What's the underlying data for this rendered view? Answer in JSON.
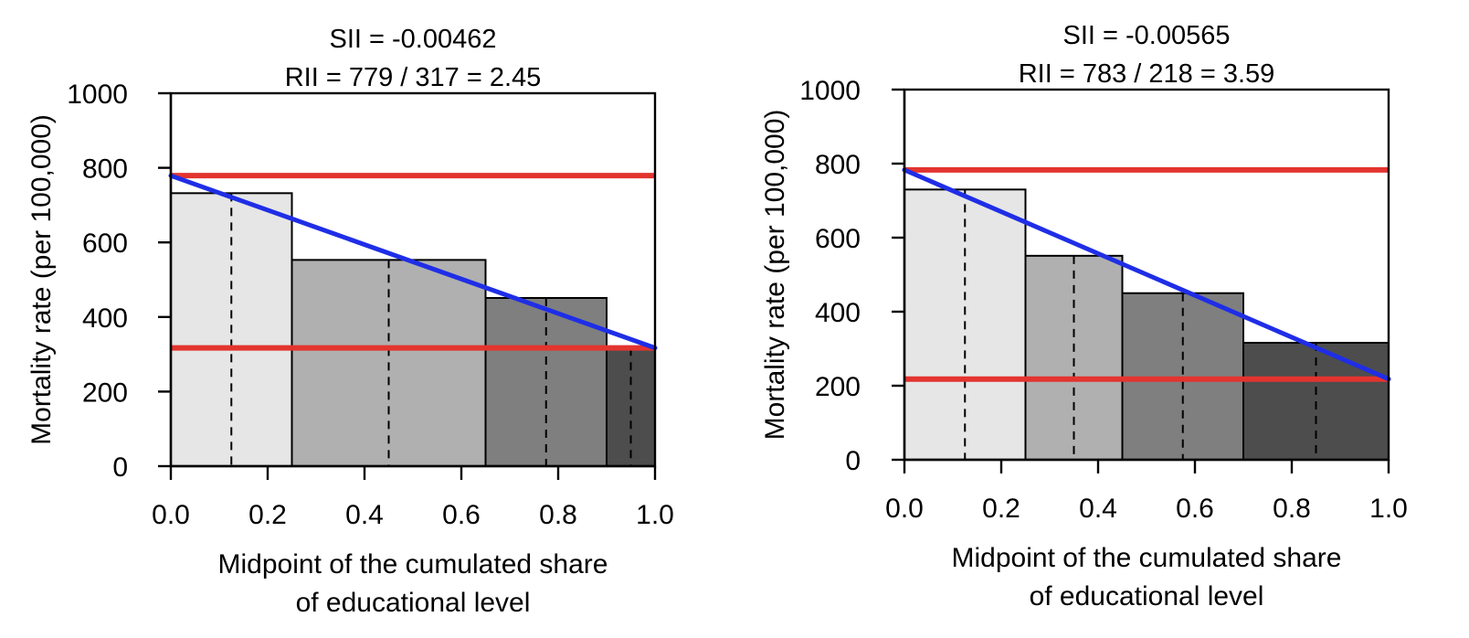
{
  "chart_data": [
    {
      "type": "bar",
      "title_lines": [
        "SII = -0.00462",
        "RII = 779 / 317 = 2.45"
      ],
      "xlabel_lines": [
        "Midpoint of the cumulated share",
        "of educational level"
      ],
      "ylabel": "Mortality rate (per 100,000)",
      "xlim": [
        0,
        1
      ],
      "ylim": [
        0,
        1000
      ],
      "x_ticks": [
        "0.0",
        "0.2",
        "0.4",
        "0.6",
        "0.8",
        "1.0"
      ],
      "y_ticks": [
        "0",
        "200",
        "400",
        "600",
        "800",
        "1000"
      ],
      "x_tick_values": [
        0,
        0.2,
        0.4,
        0.6,
        0.8,
        1.0
      ],
      "y_tick_values": [
        0,
        200,
        400,
        600,
        800,
        1000
      ],
      "bars": [
        {
          "x_start": 0.0,
          "x_end": 0.25,
          "value": 732,
          "midpoint": 0.125,
          "color": "#e6e6e6"
        },
        {
          "x_start": 0.25,
          "x_end": 0.65,
          "value": 553,
          "midpoint": 0.45,
          "color": "#b0b0b0"
        },
        {
          "x_start": 0.65,
          "x_end": 0.9,
          "value": 451,
          "midpoint": 0.775,
          "color": "#7f7f7f"
        },
        {
          "x_start": 0.9,
          "x_end": 1.0,
          "value": 318,
          "midpoint": 0.95,
          "color": "#4d4d4d"
        }
      ],
      "regression_line": {
        "y_at_0": 779,
        "y_at_1": 317,
        "color": "#1f2ee6"
      },
      "reference_lines": [
        {
          "y": 779,
          "color": "#e3342f"
        },
        {
          "y": 317,
          "color": "#e3342f"
        }
      ]
    },
    {
      "type": "bar",
      "title_lines": [
        "SII = -0.00565",
        "RII = 783 / 218 = 3.59"
      ],
      "xlabel_lines": [
        "Midpoint of the cumulated share",
        "of educational level"
      ],
      "ylabel": "Mortality rate (per 100,000)",
      "xlim": [
        0,
        1
      ],
      "ylim": [
        0,
        1000
      ],
      "x_ticks": [
        "0.0",
        "0.2",
        "0.4",
        "0.6",
        "0.8",
        "1.0"
      ],
      "y_ticks": [
        "0",
        "200",
        "400",
        "600",
        "800",
        "1000"
      ],
      "x_tick_values": [
        0,
        0.2,
        0.4,
        0.6,
        0.8,
        1.0
      ],
      "y_tick_values": [
        0,
        200,
        400,
        600,
        800,
        1000
      ],
      "bars": [
        {
          "x_start": 0.0,
          "x_end": 0.25,
          "value": 730,
          "midpoint": 0.125,
          "color": "#e6e6e6"
        },
        {
          "x_start": 0.25,
          "x_end": 0.45,
          "value": 551,
          "midpoint": 0.35,
          "color": "#b0b0b0"
        },
        {
          "x_start": 0.45,
          "x_end": 0.7,
          "value": 450,
          "midpoint": 0.575,
          "color": "#7f7f7f"
        },
        {
          "x_start": 0.7,
          "x_end": 1.0,
          "value": 316,
          "midpoint": 0.85,
          "color": "#4d4d4d"
        }
      ],
      "regression_line": {
        "y_at_0": 783,
        "y_at_1": 218,
        "color": "#1f2ee6"
      },
      "reference_lines": [
        {
          "y": 783,
          "color": "#e3342f"
        },
        {
          "y": 218,
          "color": "#e3342f"
        }
      ]
    }
  ]
}
